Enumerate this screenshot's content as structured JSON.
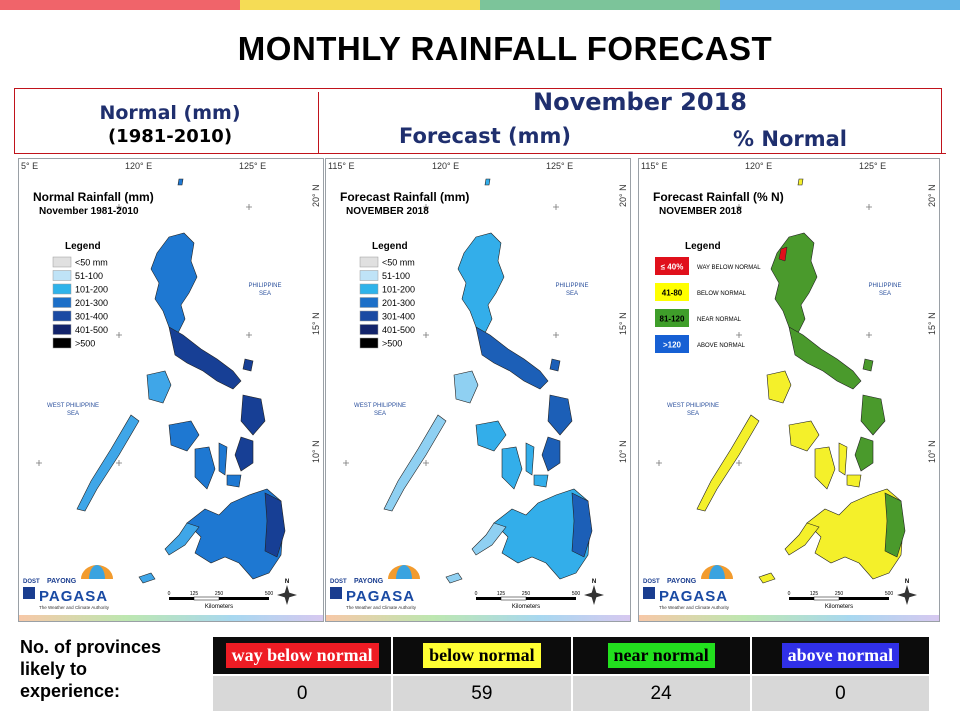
{
  "top_bar_colors": [
    "#f0646a",
    "#f5dc55",
    "#7cc49a",
    "#62b4e6"
  ],
  "title": "MONTHLY RAINFALL FORECAST",
  "headers": {
    "normal_line1": "Normal (mm)",
    "normal_line2": "(1981-2010)",
    "month": "November 2018",
    "forecast": "Forecast (mm)",
    "percent": "% Normal"
  },
  "maps": [
    {
      "title_line1": "Normal Rainfall (mm)",
      "title_line2": "November 1981-2010",
      "legend_title": "Legend",
      "legend": [
        {
          "label": "<50 mm",
          "color": "#e0e0e0"
        },
        {
          "label": "51-100",
          "color": "#bfe3f7"
        },
        {
          "label": "101-200",
          "color": "#2fb3ea"
        },
        {
          "label": "201-300",
          "color": "#1c6fc8"
        },
        {
          "label": "301-400",
          "color": "#1a4aa3"
        },
        {
          "label": "401-500",
          "color": "#13246b"
        },
        {
          "label": ">500",
          "color": "#000000"
        }
      ],
      "fill_main": "#1e78d2",
      "fill_light": "#3fa6e8",
      "fill_dark": "#173f95"
    },
    {
      "title_line1": "Forecast Rainfall (mm)",
      "title_line2": "NOVEMBER 2018",
      "legend_title": "Legend",
      "legend": [
        {
          "label": "<50 mm",
          "color": "#e0e0e0"
        },
        {
          "label": "51-100",
          "color": "#bfe3f7"
        },
        {
          "label": "101-200",
          "color": "#2fb3ea"
        },
        {
          "label": "201-300",
          "color": "#1c6fc8"
        },
        {
          "label": "301-400",
          "color": "#1a4aa3"
        },
        {
          "label": "401-500",
          "color": "#13246b"
        },
        {
          "label": ">500",
          "color": "#000000"
        }
      ],
      "fill_main": "#33aeea",
      "fill_light": "#8fd0f2",
      "fill_dark": "#1c5fb7"
    },
    {
      "title_line1": "Forecast Rainfall (% N)",
      "title_line2": "NOVEMBER 2018",
      "legend_title": "Legend",
      "legend": [
        {
          "label": "≤ 40%",
          "desc": "WAY BELOW NORMAL",
          "color": "#e0101b",
          "text_color": "#ffffff"
        },
        {
          "label": "41-80",
          "desc": "BELOW NORMAL",
          "color": "#ffff00",
          "text_color": "#000000"
        },
        {
          "label": "81-120",
          "desc": "NEAR NORMAL",
          "color": "#3f9e2a",
          "text_color": "#000000"
        },
        {
          "label": ">120",
          "desc": "ABOVE NORMAL",
          "color": "#1660d4",
          "text_color": "#ffffff"
        }
      ],
      "fill_main": "#f4f02a",
      "fill_light": "#f4f02a",
      "fill_dark": "#4a9a2c"
    }
  ],
  "map_labels": {
    "lon_left": "115° E",
    "lon_left_short": "5° E",
    "lon_mid": "120° E",
    "lon_right": "125° E",
    "lat_20": "20° N",
    "lat_15": "15° N",
    "lat_10": "10° N",
    "sea_east_1": "PHILIPPINE",
    "sea_east_2": "SEA",
    "sea_west_1": "WEST PHILIPPINE",
    "sea_west_2": "SEA",
    "scale_ticks": [
      "0",
      "125",
      "250",
      "500"
    ],
    "scale_unit": "Kilometers",
    "logo_dost": "DOST",
    "logo_payong": "PAYONG",
    "logo_pagasa": "PAGASA",
    "logo_tagline": "The Weather and Climate Authority",
    "north": "N"
  },
  "bottom": {
    "label_lines": [
      "No. of provinces",
      "likely to",
      "experience:"
    ],
    "categories": [
      {
        "label": "way below normal",
        "bg": "#ee1c24",
        "fg": "#ffffff",
        "count": "0"
      },
      {
        "label": "below normal",
        "bg": "#ffff33",
        "fg": "#000000",
        "count": "59"
      },
      {
        "label": "near normal",
        "bg": "#22e01e",
        "fg": "#000000",
        "count": "24"
      },
      {
        "label": "above normal",
        "bg": "#3030e8",
        "fg": "#ffffff",
        "count": "0"
      }
    ]
  }
}
